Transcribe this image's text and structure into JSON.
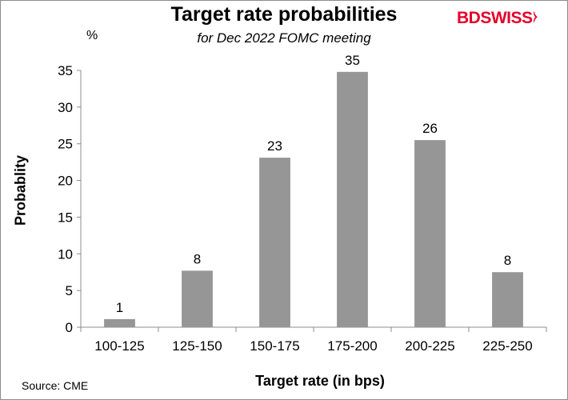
{
  "chart_data": {
    "type": "bar",
    "title": "Target rate probabilities",
    "subtitle": "for Dec 2022 FOMC meeting",
    "unit_label": "%",
    "ylabel": "Probablity",
    "xlabel": "Target rate (in bps)",
    "categories": [
      "100-125",
      "125-150",
      "150-175",
      "175-200",
      "200-225",
      "225-250"
    ],
    "values": [
      1.1,
      7.7,
      23.1,
      34.8,
      25.5,
      7.5
    ],
    "data_labels": [
      "1",
      "8",
      "23",
      "35",
      "26",
      "8"
    ],
    "ylim": [
      0,
      35
    ],
    "yticks": [
      0,
      5,
      10,
      15,
      20,
      25,
      30,
      35
    ],
    "grid": false,
    "bar_color": "#969696"
  },
  "source": "Source: CME",
  "logo": {
    "part1": "BD",
    "part2": "SWISS",
    "mark": "⧽"
  }
}
